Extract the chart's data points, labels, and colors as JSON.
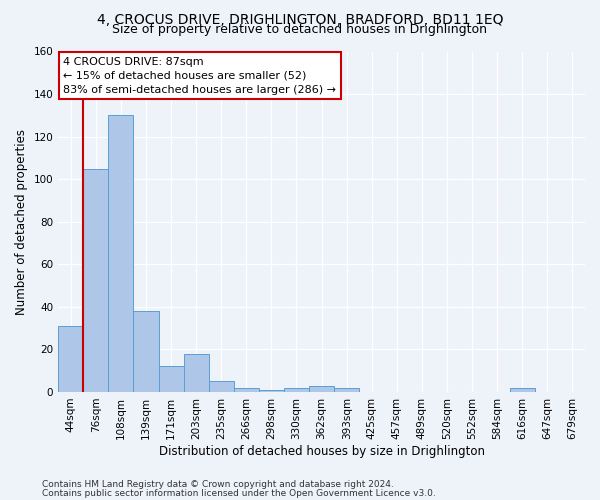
{
  "title1": "4, CROCUS DRIVE, DRIGHLINGTON, BRADFORD, BD11 1EQ",
  "title2": "Size of property relative to detached houses in Drighlington",
  "xlabel": "Distribution of detached houses by size in Drighlington",
  "ylabel": "Number of detached properties",
  "footer1": "Contains HM Land Registry data © Crown copyright and database right 2024.",
  "footer2": "Contains public sector information licensed under the Open Government Licence v3.0.",
  "bar_labels": [
    "44sqm",
    "76sqm",
    "108sqm",
    "139sqm",
    "171sqm",
    "203sqm",
    "235sqm",
    "266sqm",
    "298sqm",
    "330sqm",
    "362sqm",
    "393sqm",
    "425sqm",
    "457sqm",
    "489sqm",
    "520sqm",
    "552sqm",
    "584sqm",
    "616sqm",
    "647sqm",
    "679sqm"
  ],
  "bar_values": [
    31,
    105,
    130,
    38,
    12,
    18,
    5,
    2,
    1,
    2,
    3,
    2,
    0,
    0,
    0,
    0,
    0,
    0,
    2,
    0,
    0
  ],
  "bar_color": "#aec6e8",
  "bar_edge_color": "#5a9fd4",
  "property_label": "4 CROCUS DRIVE: 87sqm",
  "annotation_line1": "← 15% of detached houses are smaller (52)",
  "annotation_line2": "83% of semi-detached houses are larger (286) →",
  "red_line_bin": 1,
  "ylim": [
    0,
    160
  ],
  "yticks": [
    0,
    20,
    40,
    60,
    80,
    100,
    120,
    140,
    160
  ],
  "bg_color": "#eef2f9",
  "grid_color": "#ffffff",
  "annotation_box_color": "#ffffff",
  "annotation_box_edge": "#cc0000",
  "red_line_color": "#cc0000",
  "title1_fontsize": 10,
  "title2_fontsize": 9,
  "xlabel_fontsize": 8.5,
  "ylabel_fontsize": 8.5,
  "annotation_fontsize": 8,
  "tick_fontsize": 7.5,
  "footer_fontsize": 6.5
}
